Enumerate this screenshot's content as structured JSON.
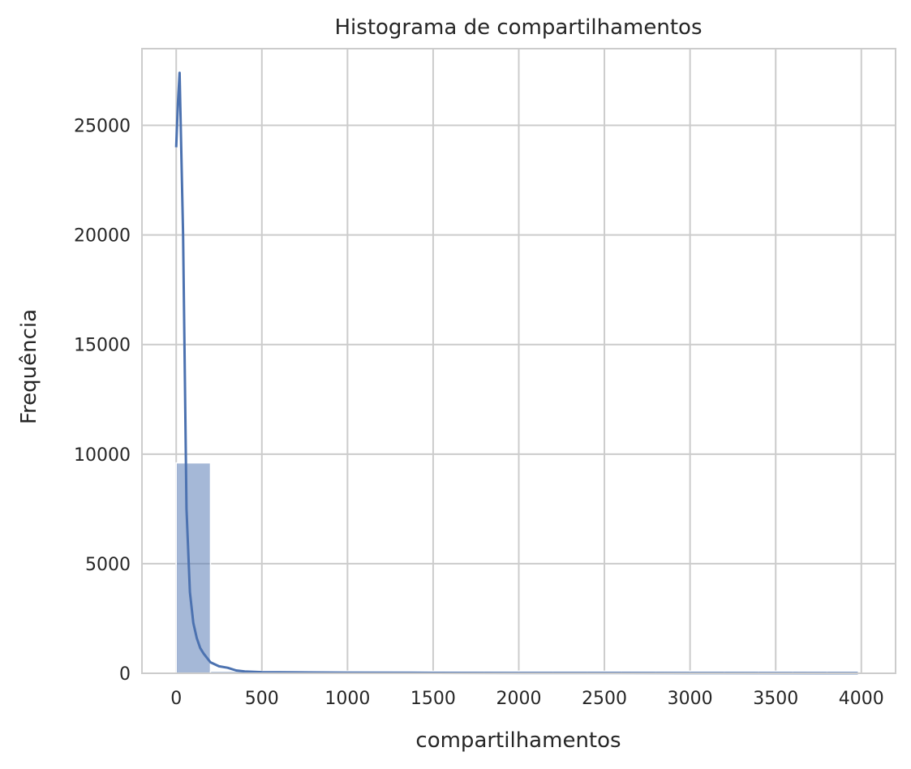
{
  "chart_data": {
    "type": "histogram",
    "title": "Histograma de compartilhamentos",
    "xlabel": "compartilhamentos",
    "ylabel": "Frequência",
    "xlim": [
      -200,
      4200
    ],
    "ylim": [
      0,
      28500
    ],
    "xticks": [
      0,
      500,
      1000,
      1500,
      2000,
      2500,
      3000,
      3500,
      4000
    ],
    "yticks": [
      0,
      5000,
      10000,
      15000,
      20000,
      25000
    ],
    "grid": true,
    "colors": {
      "bar": "#4c72b0",
      "bar_opacity": 0.5,
      "kde": "#4c72b0",
      "grid": "#cccccc",
      "frame": "#cccccc"
    },
    "bins": [
      {
        "x0": 0,
        "x1": 200,
        "count": 9600
      },
      {
        "x0": 200,
        "x1": 400,
        "count": 60
      },
      {
        "x0": 400,
        "x1": 600,
        "count": 40
      },
      {
        "x0": 600,
        "x1": 800,
        "count": 30
      },
      {
        "x0": 800,
        "x1": 1000,
        "count": 25
      },
      {
        "x0": 1000,
        "x1": 1200,
        "count": 20
      },
      {
        "x0": 1200,
        "x1": 1400,
        "count": 15
      },
      {
        "x0": 1400,
        "x1": 1600,
        "count": 12
      },
      {
        "x0": 1600,
        "x1": 1800,
        "count": 10
      },
      {
        "x0": 1800,
        "x1": 2000,
        "count": 10
      },
      {
        "x0": 2000,
        "x1": 2200,
        "count": 8
      },
      {
        "x0": 2200,
        "x1": 2400,
        "count": 8
      },
      {
        "x0": 2400,
        "x1": 2600,
        "count": 7
      },
      {
        "x0": 2600,
        "x1": 2800,
        "count": 6
      },
      {
        "x0": 2800,
        "x1": 3000,
        "count": 6
      },
      {
        "x0": 3000,
        "x1": 3200,
        "count": 5
      },
      {
        "x0": 3200,
        "x1": 3400,
        "count": 5
      },
      {
        "x0": 3400,
        "x1": 3600,
        "count": 5
      },
      {
        "x0": 3600,
        "x1": 3800,
        "count": 5
      },
      {
        "x0": 3800,
        "x1": 3980,
        "count": 5
      }
    ],
    "kde": {
      "x": [
        0,
        10,
        20,
        40,
        60,
        80,
        100,
        120,
        140,
        160,
        180,
        200,
        250,
        300,
        350,
        400,
        500,
        700,
        1000,
        1500,
        2000,
        3000,
        3980
      ],
      "y": [
        24000,
        26000,
        27400,
        20000,
        7500,
        3700,
        2300,
        1600,
        1150,
        900,
        700,
        500,
        320,
        250,
        130,
        80,
        50,
        40,
        30,
        20,
        15,
        10,
        5
      ]
    }
  }
}
